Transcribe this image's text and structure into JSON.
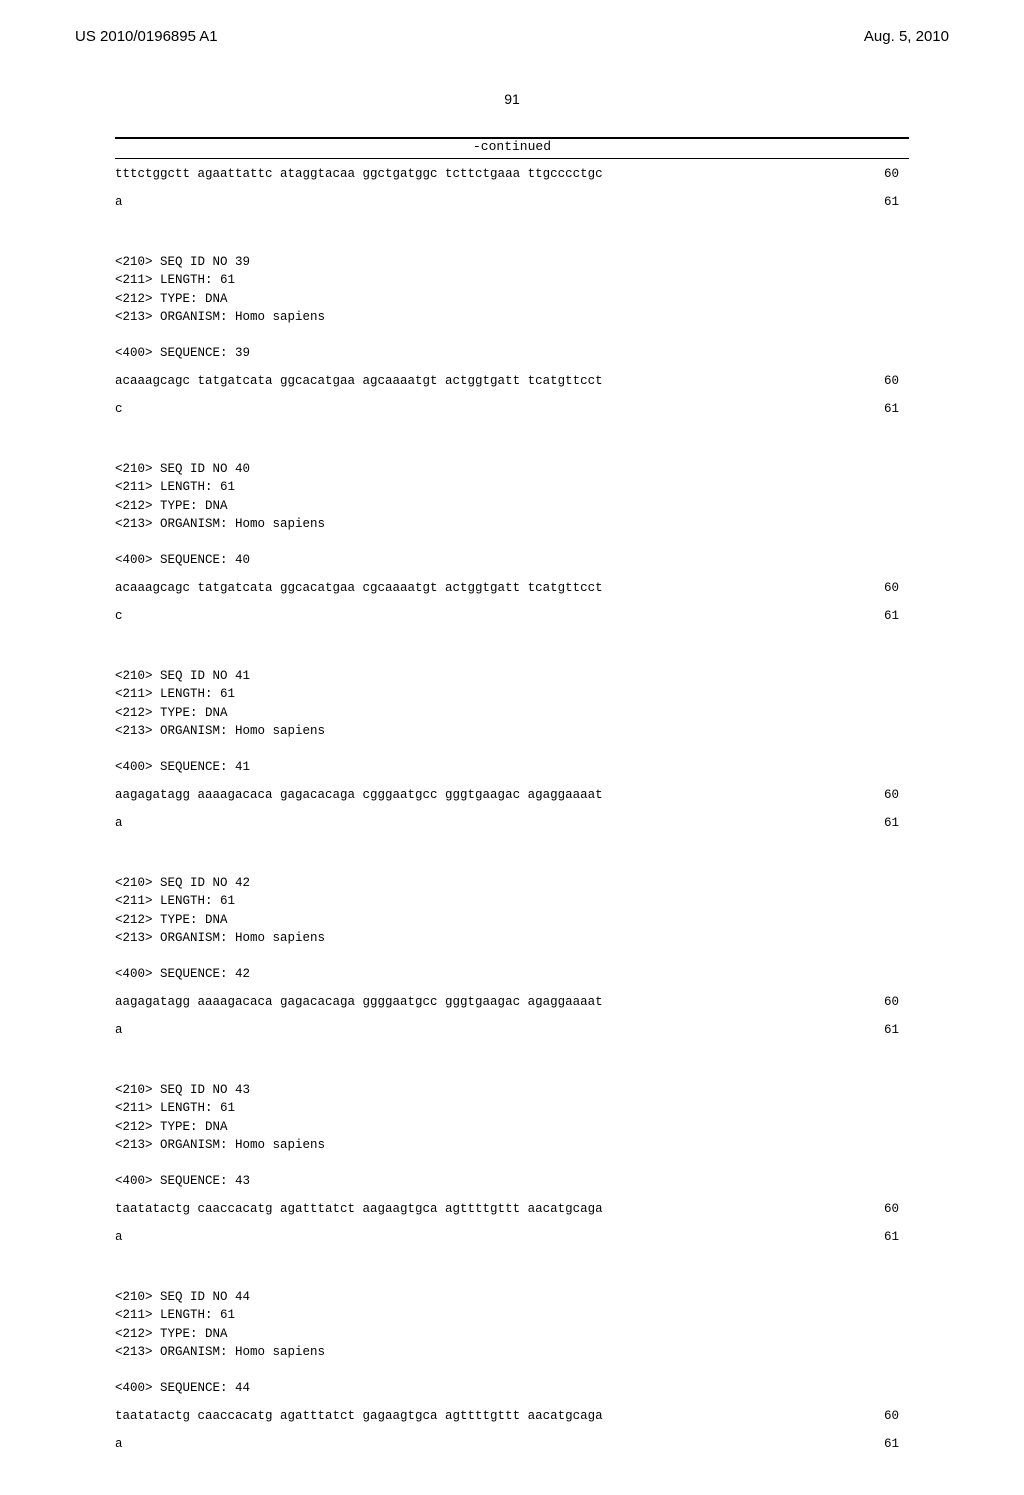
{
  "header": {
    "pub_number": "US 2010/0196895 A1",
    "pub_date": "Aug. 5, 2010"
  },
  "page_number": "91",
  "continued_label": "-continued",
  "sequences": [
    {
      "lines": [
        {
          "text": "tttctggctt agaattattc ataggtacaa ggctgatggc tcttctgaaa ttgcccctgc",
          "pos": "60"
        },
        {
          "text": "a",
          "pos": "61"
        }
      ]
    },
    {
      "header": [
        "<210> SEQ ID NO 39",
        "<211> LENGTH: 61",
        "<212> TYPE: DNA",
        "<213> ORGANISM: Homo sapiens",
        "",
        "<400> SEQUENCE: 39"
      ],
      "lines": [
        {
          "text": "acaaagcagc tatgatcata ggcacatgaa agcaaaatgt actggtgatt tcatgttcct",
          "pos": "60"
        },
        {
          "text": "c",
          "pos": "61"
        }
      ]
    },
    {
      "header": [
        "<210> SEQ ID NO 40",
        "<211> LENGTH: 61",
        "<212> TYPE: DNA",
        "<213> ORGANISM: Homo sapiens",
        "",
        "<400> SEQUENCE: 40"
      ],
      "lines": [
        {
          "text": "acaaagcagc tatgatcata ggcacatgaa cgcaaaatgt actggtgatt tcatgttcct",
          "pos": "60"
        },
        {
          "text": "c",
          "pos": "61"
        }
      ]
    },
    {
      "header": [
        "<210> SEQ ID NO 41",
        "<211> LENGTH: 61",
        "<212> TYPE: DNA",
        "<213> ORGANISM: Homo sapiens",
        "",
        "<400> SEQUENCE: 41"
      ],
      "lines": [
        {
          "text": "aagagatagg aaaagacaca gagacacaga cgggaatgcc gggtgaagac agaggaaaat",
          "pos": "60"
        },
        {
          "text": "a",
          "pos": "61"
        }
      ]
    },
    {
      "header": [
        "<210> SEQ ID NO 42",
        "<211> LENGTH: 61",
        "<212> TYPE: DNA",
        "<213> ORGANISM: Homo sapiens",
        "",
        "<400> SEQUENCE: 42"
      ],
      "lines": [
        {
          "text": "aagagatagg aaaagacaca gagacacaga ggggaatgcc gggtgaagac agaggaaaat",
          "pos": "60"
        },
        {
          "text": "a",
          "pos": "61"
        }
      ]
    },
    {
      "header": [
        "<210> SEQ ID NO 43",
        "<211> LENGTH: 61",
        "<212> TYPE: DNA",
        "<213> ORGANISM: Homo sapiens",
        "",
        "<400> SEQUENCE: 43"
      ],
      "lines": [
        {
          "text": "taatatactg caaccacatg agatttatct aagaagtgca agttttgttt aacatgcaga",
          "pos": "60"
        },
        {
          "text": "a",
          "pos": "61"
        }
      ]
    },
    {
      "header": [
        "<210> SEQ ID NO 44",
        "<211> LENGTH: 61",
        "<212> TYPE: DNA",
        "<213> ORGANISM: Homo sapiens",
        "",
        "<400> SEQUENCE: 44"
      ],
      "lines": [
        {
          "text": "taatatactg caaccacatg agatttatct gagaagtgca agttttgttt aacatgcaga",
          "pos": "60"
        },
        {
          "text": "a",
          "pos": "61"
        }
      ]
    }
  ]
}
